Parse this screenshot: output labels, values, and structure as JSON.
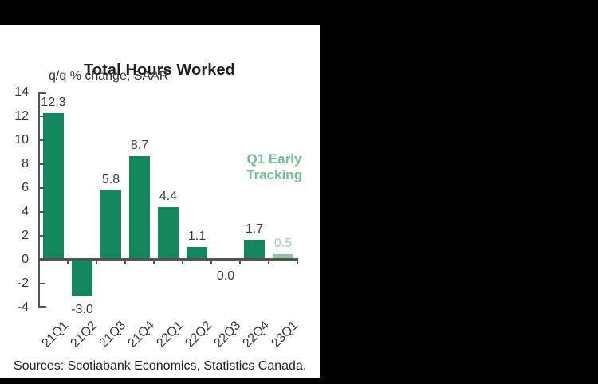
{
  "window": {
    "background": "#000000",
    "panel_background": "#ffffff"
  },
  "chart_data": {
    "type": "bar",
    "title": "Total Hours Worked",
    "subtitle": "q/q % change, SAAR",
    "categories": [
      "21Q1",
      "21Q2",
      "21Q3",
      "21Q4",
      "22Q1",
      "22Q2",
      "22Q3",
      "22Q4",
      "23Q1"
    ],
    "values": [
      12.3,
      -3.0,
      5.8,
      8.7,
      4.4,
      1.1,
      0.0,
      1.7,
      0.5
    ],
    "value_labels": [
      "12.3",
      "-3.0",
      "5.8",
      "8.7",
      "4.4",
      "1.1",
      "0.0",
      "1.7",
      "0.5"
    ],
    "highlight_index": 8,
    "annotation": [
      "Q1 Early",
      "Tracking"
    ],
    "ylim": [
      -4,
      14
    ],
    "yticks": [
      14,
      12,
      10,
      8,
      6,
      4,
      2,
      0,
      -2,
      -4
    ],
    "grid": false,
    "legend": "none",
    "source": "Sources: Scotiabank Economics, Statistics Canada.",
    "colors": {
      "bar": "#12875b",
      "highlight_bar": "#8cc7a3",
      "highlight_value_label": "#9ed0b2",
      "annotation_text": "#76bd93",
      "axis": "#545454",
      "text": "#333333",
      "title_text": "#1f1f1f"
    }
  }
}
